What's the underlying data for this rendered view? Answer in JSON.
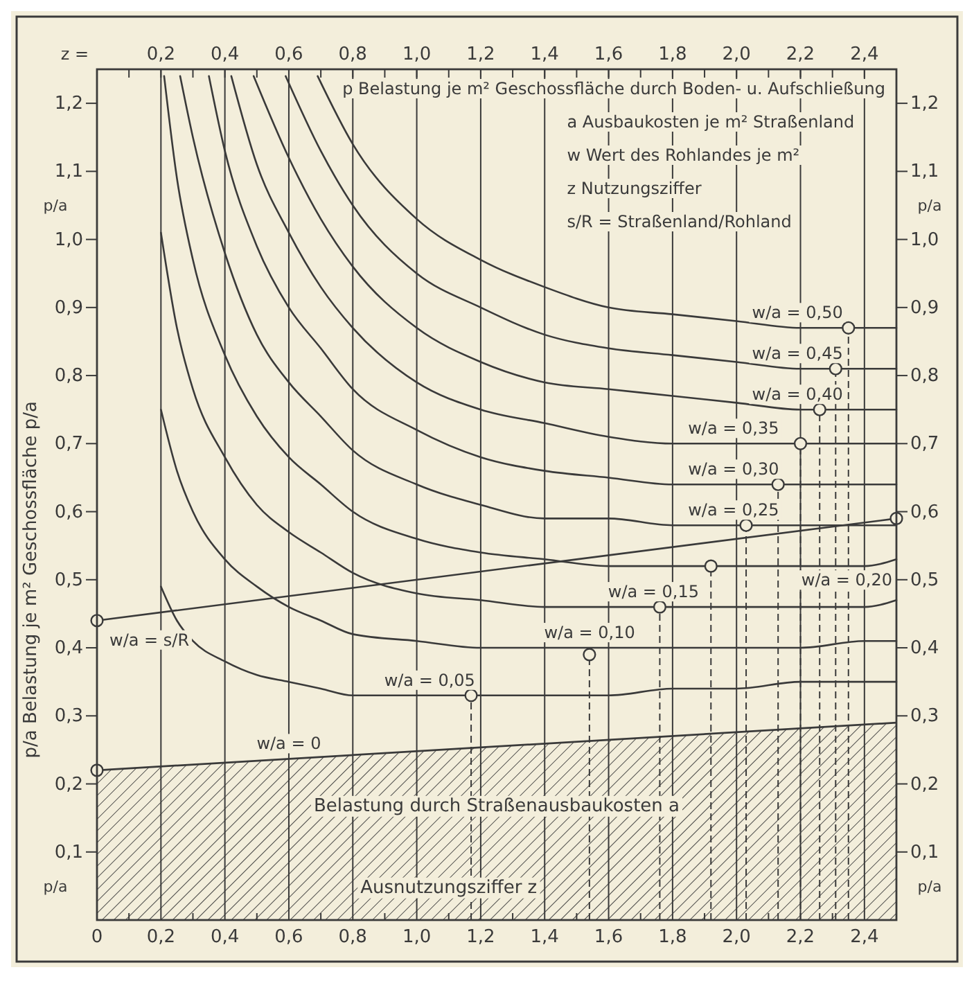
{
  "chart_data": {
    "type": "line",
    "xlabel": "Ausnutzungsziffer z",
    "x2label": "z =",
    "ylabel": "p/a Belastung je m² Geschossfläche p/a",
    "annotations": [
      "p Belastung je m² Geschossfläche durch Boden- u. Aufschließung",
      "a Ausbaukosten je m² Straßenland",
      "w Wert des Rohlandes je m²",
      "z Nutzungsziffer",
      "s/R = Straßenland/Rohland",
      "Belastung durch Straßenausbaukosten a",
      "p/a",
      "p/a",
      "p/a",
      "p/a"
    ],
    "xlim": [
      0,
      2.5
    ],
    "ylim": [
      0,
      1.25
    ],
    "y2lim": [
      0,
      1.25
    ],
    "x2lim": [
      0,
      2.5
    ],
    "xticks": [
      {
        "value": 0,
        "label": "0"
      },
      {
        "value": 0.1,
        "label": null
      },
      {
        "value": 0.2,
        "label": "0,2"
      },
      {
        "value": 0.3,
        "label": null
      },
      {
        "value": 0.4,
        "label": "0,4"
      },
      {
        "value": 0.5,
        "label": null
      },
      {
        "value": 0.6,
        "label": "0,6"
      },
      {
        "value": 0.7,
        "label": null
      },
      {
        "value": 0.8,
        "label": "0,8"
      },
      {
        "value": 0.9,
        "label": null
      },
      {
        "value": 1.0,
        "label": "1,0"
      },
      {
        "value": 1.1,
        "label": null
      },
      {
        "value": 1.2,
        "label": "1,2"
      },
      {
        "value": 1.3,
        "label": null
      },
      {
        "value": 1.4,
        "label": "1,4"
      },
      {
        "value": 1.5,
        "label": null
      },
      {
        "value": 1.6,
        "label": "1,6"
      },
      {
        "value": 1.7,
        "label": null
      },
      {
        "value": 1.8,
        "label": "1,8"
      },
      {
        "value": 1.9,
        "label": null
      },
      {
        "value": 2.0,
        "label": "2,0"
      },
      {
        "value": 2.1,
        "label": null
      },
      {
        "value": 2.2,
        "label": "2,2"
      },
      {
        "value": 2.3,
        "label": null
      },
      {
        "value": 2.4,
        "label": "2,4"
      }
    ],
    "x2ticks": [
      {
        "value": 0.1,
        "label": null
      },
      {
        "value": 0.2,
        "label": "0,2"
      },
      {
        "value": 0.3,
        "label": null
      },
      {
        "value": 0.4,
        "label": "0,4"
      },
      {
        "value": 0.5,
        "label": null
      },
      {
        "value": 0.6,
        "label": "0,6"
      },
      {
        "value": 0.7,
        "label": null
      },
      {
        "value": 0.8,
        "label": "0,8"
      },
      {
        "value": 0.9,
        "label": null
      },
      {
        "value": 1.0,
        "label": "1,0"
      },
      {
        "value": 1.1,
        "label": null
      },
      {
        "value": 1.2,
        "label": "1,2"
      },
      {
        "value": 1.3,
        "label": null
      },
      {
        "value": 1.4,
        "label": "1,4"
      },
      {
        "value": 1.5,
        "label": null
      },
      {
        "value": 1.6,
        "label": "1,6"
      },
      {
        "value": 1.7,
        "label": null
      },
      {
        "value": 1.8,
        "label": "1,8"
      },
      {
        "value": 1.9,
        "label": null
      },
      {
        "value": 2.0,
        "label": "2,0"
      },
      {
        "value": 2.1,
        "label": null
      },
      {
        "value": 2.2,
        "label": "2,2"
      },
      {
        "value": 2.3,
        "label": null
      },
      {
        "value": 2.4,
        "label": "2,4"
      }
    ],
    "yticks": [
      {
        "value": 0.1,
        "label": "0,1"
      },
      {
        "value": 0.2,
        "label": "0,2"
      },
      {
        "value": 0.3,
        "label": "0,3"
      },
      {
        "value": 0.4,
        "label": "0,4"
      },
      {
        "value": 0.5,
        "label": "0,5"
      },
      {
        "value": 0.6,
        "label": "0,6"
      },
      {
        "value": 0.7,
        "label": "0,7"
      },
      {
        "value": 0.8,
        "label": "0,8"
      },
      {
        "value": 0.9,
        "label": "0,9"
      },
      {
        "value": 1.0,
        "label": "1,0"
      },
      {
        "value": 1.1,
        "label": "1,1"
      },
      {
        "value": 1.2,
        "label": "1,2"
      }
    ],
    "y2ticks": [
      {
        "value": 0.1,
        "label": "0,1"
      },
      {
        "value": 0.2,
        "label": "0,2"
      },
      {
        "value": 0.3,
        "label": "0,3"
      },
      {
        "value": 0.4,
        "label": "0,4"
      },
      {
        "value": 0.5,
        "label": "0,5"
      },
      {
        "value": 0.6,
        "label": "0,6"
      },
      {
        "value": 0.7,
        "label": "0,7"
      },
      {
        "value": 0.8,
        "label": "0,8"
      },
      {
        "value": 0.9,
        "label": "0,9"
      },
      {
        "value": 1.0,
        "label": "1,0"
      },
      {
        "value": 1.1,
        "label": "1,1"
      },
      {
        "value": 1.2,
        "label": "1,2"
      }
    ],
    "grid": "x",
    "marker": "none",
    "line_style": "solid",
    "series": [
      {
        "type": "area",
        "name": "w/a = 0",
        "color": "#3a3a3a",
        "x": [
          0,
          2.5
        ],
        "values": [
          0.22,
          0.29
        ]
      },
      {
        "name": "w/a = s/R",
        "color": "#3a3a3a",
        "x": [
          0,
          2.5
        ],
        "values": [
          0.44,
          0.59
        ]
      },
      {
        "name": "w/a = 0,05",
        "color": "#3a3a3a",
        "x": [
          0.2,
          0.25,
          0.3,
          0.4,
          0.5,
          0.6,
          0.7,
          0.8,
          1.0,
          1.2,
          1.4,
          1.6,
          1.8,
          2.0,
          2.2,
          2.4,
          2.5
        ],
        "values": [
          0.49,
          0.44,
          0.41,
          0.38,
          0.36,
          0.35,
          0.34,
          0.33,
          0.33,
          0.33,
          0.33,
          0.33,
          0.34,
          0.34,
          0.35,
          0.35,
          0.35
        ]
      },
      {
        "name": "w/a = 0,10",
        "color": "#3a3a3a",
        "x": [
          0.2,
          0.25,
          0.3,
          0.4,
          0.5,
          0.6,
          0.7,
          0.8,
          1.0,
          1.2,
          1.4,
          1.6,
          1.8,
          2.0,
          2.2,
          2.4,
          2.5
        ],
        "values": [
          0.75,
          0.66,
          0.6,
          0.53,
          0.49,
          0.46,
          0.44,
          0.42,
          0.41,
          0.4,
          0.4,
          0.4,
          0.4,
          0.4,
          0.4,
          0.41,
          0.41
        ]
      },
      {
        "name": "w/a = 0,15",
        "color": "#3a3a3a",
        "x": [
          0.2,
          0.25,
          0.3,
          0.4,
          0.5,
          0.6,
          0.7,
          0.8,
          1.0,
          1.2,
          1.4,
          1.6,
          1.8,
          2.0,
          2.2,
          2.4,
          2.5
        ],
        "values": [
          1.01,
          0.87,
          0.78,
          0.68,
          0.61,
          0.57,
          0.54,
          0.51,
          0.48,
          0.47,
          0.46,
          0.46,
          0.46,
          0.46,
          0.46,
          0.46,
          0.47
        ]
      },
      {
        "name": "w/a = 0,20",
        "color": "#3a3a3a",
        "x": [
          0.21,
          0.25,
          0.3,
          0.4,
          0.5,
          0.6,
          0.7,
          0.8,
          1.0,
          1.2,
          1.4,
          1.6,
          1.8,
          2.0,
          2.2,
          2.4,
          2.5
        ],
        "values": [
          1.24,
          1.09,
          0.97,
          0.83,
          0.74,
          0.68,
          0.64,
          0.6,
          0.56,
          0.54,
          0.53,
          0.52,
          0.52,
          0.52,
          0.52,
          0.52,
          0.53
        ]
      },
      {
        "name": "w/a = 0,25",
        "color": "#3a3a3a",
        "x": [
          0.26,
          0.3,
          0.4,
          0.5,
          0.6,
          0.7,
          0.8,
          1.0,
          1.2,
          1.4,
          1.6,
          1.8,
          2.0,
          2.2,
          2.4,
          2.5
        ],
        "values": [
          1.24,
          1.15,
          0.98,
          0.86,
          0.79,
          0.74,
          0.69,
          0.64,
          0.61,
          0.59,
          0.59,
          0.58,
          0.58,
          0.58,
          0.58,
          0.58
        ]
      },
      {
        "name": "w/a = 0,30",
        "color": "#3a3a3a",
        "x": [
          0.35,
          0.4,
          0.5,
          0.6,
          0.7,
          0.8,
          1.0,
          1.2,
          1.4,
          1.6,
          1.8,
          2.0,
          2.2,
          2.4,
          2.5
        ],
        "values": [
          1.24,
          1.13,
          0.99,
          0.9,
          0.84,
          0.78,
          0.72,
          0.68,
          0.66,
          0.65,
          0.64,
          0.64,
          0.64,
          0.64,
          0.64
        ]
      },
      {
        "name": "w/a = 0,35",
        "color": "#3a3a3a",
        "x": [
          0.42,
          0.5,
          0.6,
          0.7,
          0.8,
          1.0,
          1.2,
          1.4,
          1.6,
          1.8,
          2.0,
          2.2,
          2.4,
          2.5
        ],
        "values": [
          1.24,
          1.11,
          1.01,
          0.93,
          0.87,
          0.79,
          0.75,
          0.73,
          0.71,
          0.7,
          0.7,
          0.7,
          0.7,
          0.7
        ]
      },
      {
        "name": "w/a = 0,40",
        "color": "#3a3a3a",
        "x": [
          0.49,
          0.6,
          0.7,
          0.8,
          1.0,
          1.2,
          1.4,
          1.6,
          1.8,
          2.0,
          2.2,
          2.4,
          2.5
        ],
        "values": [
          1.24,
          1.12,
          1.03,
          0.96,
          0.87,
          0.82,
          0.79,
          0.78,
          0.77,
          0.76,
          0.75,
          0.75,
          0.75
        ]
      },
      {
        "name": "w/a = 0,45",
        "color": "#3a3a3a",
        "x": [
          0.59,
          0.7,
          0.8,
          1.0,
          1.2,
          1.4,
          1.6,
          1.8,
          2.0,
          2.2,
          2.4,
          2.5
        ],
        "values": [
          1.24,
          1.13,
          1.05,
          0.95,
          0.9,
          0.86,
          0.84,
          0.83,
          0.82,
          0.81,
          0.81,
          0.81
        ]
      },
      {
        "name": "w/a = 0,50",
        "color": "#3a3a3a",
        "x": [
          0.69,
          0.8,
          1.0,
          1.2,
          1.4,
          1.6,
          1.8,
          2.0,
          2.2,
          2.4,
          2.5
        ],
        "values": [
          1.24,
          1.14,
          1.03,
          0.97,
          0.93,
          0.9,
          0.89,
          0.88,
          0.87,
          0.87,
          0.87
        ]
      },
      {
        "type": "lollipop",
        "color": "#3a3a3a",
        "marker": "circle",
        "line_style": "dashed",
        "x": [
          1.17,
          1.54,
          1.76,
          1.92,
          2.03,
          2.13,
          2.2,
          2.26,
          2.31,
          2.35
        ],
        "values": [
          0.33,
          0.39,
          0.46,
          0.52,
          0.58,
          0.64,
          0.7,
          0.75,
          0.81,
          0.87
        ]
      },
      {
        "type": "scatter",
        "color": "#3a3a3a",
        "marker": "circle",
        "x": [
          0,
          0,
          2.5
        ],
        "values": [
          0.22,
          0.44,
          0.59
        ]
      }
    ]
  }
}
